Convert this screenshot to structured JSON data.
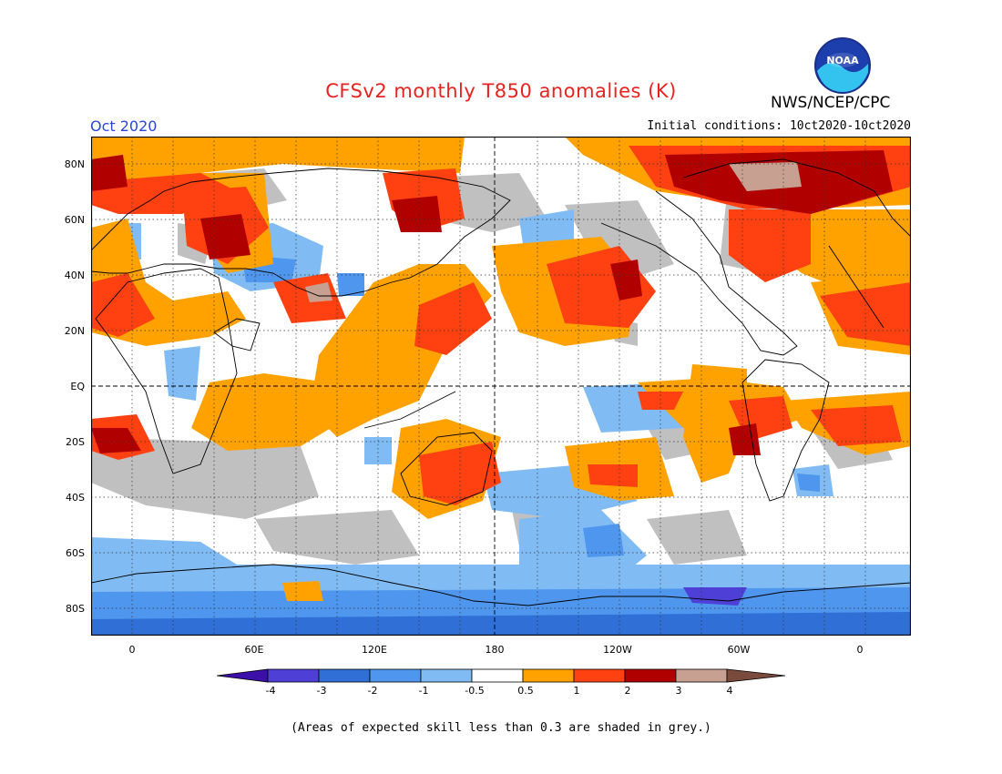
{
  "title": "CFSv2 monthly T850 anomalies (K)",
  "agency": "NWS/NCEP/CPC",
  "logo_text": "NOAA",
  "valid_month": "Oct 2020",
  "initial_conditions": "Initial conditions: 10ct2020-10ct2020",
  "caption": "(Areas of expected skill less than 0.3 are shaded in grey.)",
  "map": {
    "lat_labels": [
      "80N",
      "60N",
      "40N",
      "20N",
      "EQ",
      "20S",
      "40S",
      "60S",
      "80S"
    ],
    "lon_labels": [
      "0",
      "60E",
      "120E",
      "180",
      "120W",
      "60W",
      "0"
    ],
    "units": "K"
  },
  "legend": {
    "labels": [
      "-4",
      "-3",
      "-2",
      "-1",
      "-0.5",
      "0.5",
      "1",
      "2",
      "3",
      "4"
    ],
    "colors": [
      "#3c0fa8",
      "#4e40d6",
      "#2f6fd6",
      "#4f96ee",
      "#80bcf3",
      "#ffffff",
      "#ffa200",
      "#ff4010",
      "#b00000",
      "#c8a092",
      "#7a4a3c"
    ],
    "grey_color": "#c0c0c0"
  }
}
